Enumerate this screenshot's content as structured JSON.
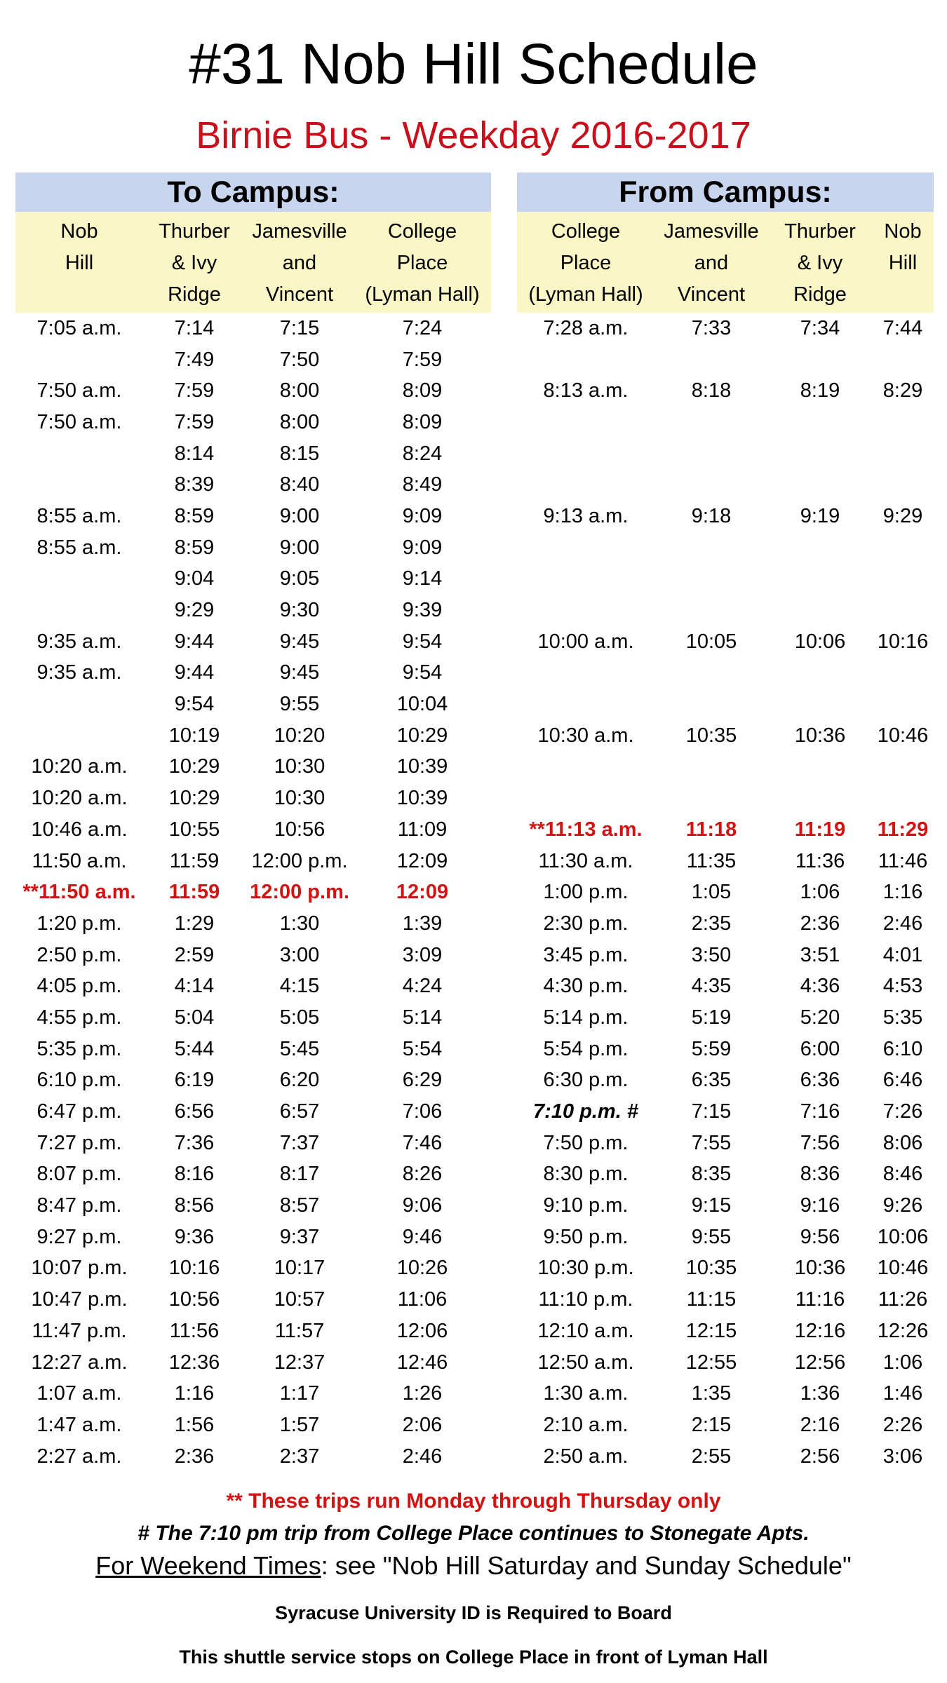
{
  "title": "#31 Nob Hill Schedule",
  "subtitle": "Birnie Bus - Weekday 2016-2017",
  "colors": {
    "subtitle": "#c8101c",
    "highlight_red": "#d41212",
    "header_blue": "#c7d6ee",
    "header_yellow": "#fbf6c6"
  },
  "to_campus": {
    "heading": "To Campus:",
    "columns": [
      [
        "Nob",
        "Hill"
      ],
      [
        "Thurber",
        "& Ivy",
        "Ridge"
      ],
      [
        "Jamesville",
        "and",
        "Vincent"
      ],
      [
        "College",
        "Place",
        "(Lyman Hall)"
      ]
    ],
    "rows": [
      {
        "cells": [
          "7:05 a.m.",
          "7:14",
          "7:15",
          "7:24"
        ]
      },
      {
        "cells": [
          "",
          "7:49",
          "7:50",
          "7:59"
        ]
      },
      {
        "cells": [
          "7:50 a.m.",
          "7:59",
          "8:00",
          "8:09"
        ]
      },
      {
        "cells": [
          "7:50 a.m.",
          "7:59",
          "8:00",
          "8:09"
        ]
      },
      {
        "cells": [
          "",
          "8:14",
          "8:15",
          "8:24"
        ]
      },
      {
        "cells": [
          "",
          "8:39",
          "8:40",
          "8:49"
        ]
      },
      {
        "cells": [
          "8:55 a.m.",
          "8:59",
          "9:00",
          "9:09"
        ]
      },
      {
        "cells": [
          "8:55 a.m.",
          "8:59",
          "9:00",
          "9:09"
        ]
      },
      {
        "cells": [
          "",
          "9:04",
          "9:05",
          "9:14"
        ]
      },
      {
        "cells": [
          "",
          "9:29",
          "9:30",
          "9:39"
        ]
      },
      {
        "cells": [
          "9:35 a.m.",
          "9:44",
          "9:45",
          "9:54"
        ]
      },
      {
        "cells": [
          "9:35 a.m.",
          "9:44",
          "9:45",
          "9:54"
        ]
      },
      {
        "cells": [
          "",
          "9:54",
          "9:55",
          "10:04"
        ]
      },
      {
        "cells": [
          "",
          "10:19",
          "10:20",
          "10:29"
        ]
      },
      {
        "cells": [
          "10:20 a.m.",
          "10:29",
          "10:30",
          "10:39"
        ]
      },
      {
        "cells": [
          "10:20 a.m.",
          "10:29",
          "10:30",
          "10:39"
        ]
      },
      {
        "cells": [
          "10:46 a.m.",
          "10:55",
          "10:56",
          "11:09"
        ]
      },
      {
        "cells": [
          "11:50 a.m.",
          "11:59",
          "12:00 p.m.",
          "12:09"
        ]
      },
      {
        "cells": [
          "**11:50 a.m.",
          "11:59",
          "12:00 p.m.",
          "12:09"
        ],
        "red": true
      },
      {
        "cells": [
          "1:20 p.m.",
          "1:29",
          "1:30",
          "1:39"
        ]
      },
      {
        "cells": [
          "2:50 p.m.",
          "2:59",
          "3:00",
          "3:09"
        ]
      },
      {
        "cells": [
          "4:05 p.m.",
          "4:14",
          "4:15",
          "4:24"
        ]
      },
      {
        "cells": [
          "4:55 p.m.",
          "5:04",
          "5:05",
          "5:14"
        ]
      },
      {
        "cells": [
          "5:35 p.m.",
          "5:44",
          "5:45",
          "5:54"
        ]
      },
      {
        "cells": [
          "6:10 p.m.",
          "6:19",
          "6:20",
          "6:29"
        ]
      },
      {
        "cells": [
          "6:47 p.m.",
          "6:56",
          "6:57",
          "7:06"
        ]
      },
      {
        "cells": [
          "7:27 p.m.",
          "7:36",
          "7:37",
          "7:46"
        ]
      },
      {
        "cells": [
          "8:07 p.m.",
          "8:16",
          "8:17",
          "8:26"
        ]
      },
      {
        "cells": [
          "8:47 p.m.",
          "8:56",
          "8:57",
          "9:06"
        ]
      },
      {
        "cells": [
          "9:27 p.m.",
          "9:36",
          "9:37",
          "9:46"
        ]
      },
      {
        "cells": [
          "10:07 p.m.",
          "10:16",
          "10:17",
          "10:26"
        ]
      },
      {
        "cells": [
          "10:47 p.m.",
          "10:56",
          "10:57",
          "11:06"
        ]
      },
      {
        "cells": [
          "11:47 p.m.",
          "11:56",
          "11:57",
          "12:06"
        ]
      },
      {
        "cells": [
          "12:27 a.m.",
          "12:36",
          "12:37",
          "12:46"
        ]
      },
      {
        "cells": [
          "1:07 a.m.",
          "1:16",
          "1:17",
          "1:26"
        ]
      },
      {
        "cells": [
          "1:47 a.m.",
          "1:56",
          "1:57",
          "2:06"
        ]
      },
      {
        "cells": [
          "2:27 a.m.",
          "2:36",
          "2:37",
          "2:46"
        ]
      }
    ]
  },
  "from_campus": {
    "heading": "From Campus:",
    "columns": [
      [
        "College",
        "Place",
        "(Lyman Hall)"
      ],
      [
        "Jamesville",
        "and",
        "Vincent"
      ],
      [
        "Thurber",
        "& Ivy",
        "Ridge"
      ],
      [
        "Nob",
        "Hill"
      ]
    ],
    "rows": [
      {
        "cells": [
          "7:28 a.m.",
          "7:33",
          "7:34",
          "7:44"
        ]
      },
      {
        "cells": [
          "",
          "",
          "",
          ""
        ]
      },
      {
        "cells": [
          "8:13 a.m.",
          "8:18",
          "8:19",
          "8:29"
        ]
      },
      {
        "cells": [
          "",
          "",
          "",
          ""
        ]
      },
      {
        "cells": [
          "",
          "",
          "",
          ""
        ]
      },
      {
        "cells": [
          "",
          "",
          "",
          ""
        ]
      },
      {
        "cells": [
          "9:13 a.m.",
          "9:18",
          "9:19",
          "9:29"
        ]
      },
      {
        "cells": [
          "",
          "",
          "",
          ""
        ]
      },
      {
        "cells": [
          "",
          "",
          "",
          ""
        ]
      },
      {
        "cells": [
          "",
          "",
          "",
          ""
        ]
      },
      {
        "cells": [
          "10:00 a.m.",
          "10:05",
          "10:06",
          "10:16"
        ]
      },
      {
        "cells": [
          "",
          "",
          "",
          ""
        ]
      },
      {
        "cells": [
          "",
          "",
          "",
          ""
        ]
      },
      {
        "cells": [
          "10:30 a.m.",
          "10:35",
          "10:36",
          "10:46"
        ]
      },
      {
        "cells": [
          "",
          "",
          "",
          ""
        ]
      },
      {
        "cells": [
          "",
          "",
          "",
          ""
        ]
      },
      {
        "cells": [
          "**11:13 a.m.",
          "11:18",
          "11:19",
          "11:29"
        ],
        "red": true
      },
      {
        "cells": [
          "11:30 a.m.",
          "11:35",
          "11:36",
          "11:46"
        ]
      },
      {
        "cells": [
          "1:00 p.m.",
          "1:05",
          "1:06",
          "1:16"
        ]
      },
      {
        "cells": [
          "2:30 p.m.",
          "2:35",
          "2:36",
          "2:46"
        ]
      },
      {
        "cells": [
          "3:45 p.m.",
          "3:50",
          "3:51",
          "4:01"
        ]
      },
      {
        "cells": [
          "4:30 p.m.",
          "4:35",
          "4:36",
          "4:53"
        ]
      },
      {
        "cells": [
          "5:14 p.m.",
          "5:19",
          "5:20",
          "5:35"
        ]
      },
      {
        "cells": [
          "5:54 p.m.",
          "5:59",
          "6:00",
          "6:10"
        ]
      },
      {
        "cells": [
          "6:30 p.m.",
          "6:35",
          "6:36",
          "6:46"
        ]
      },
      {
        "cells": [
          "7:10 p.m. #",
          "7:15",
          "7:16",
          "7:26"
        ],
        "italic": true
      },
      {
        "cells": [
          "7:50 p.m.",
          "7:55",
          "7:56",
          "8:06"
        ]
      },
      {
        "cells": [
          "8:30 p.m.",
          "8:35",
          "8:36",
          "8:46"
        ]
      },
      {
        "cells": [
          "9:10 p.m.",
          "9:15",
          "9:16",
          "9:26"
        ]
      },
      {
        "cells": [
          "9:50 p.m.",
          "9:55",
          "9:56",
          "10:06"
        ]
      },
      {
        "cells": [
          "10:30 p.m.",
          "10:35",
          "10:36",
          "10:46"
        ]
      },
      {
        "cells": [
          "11:10 p.m.",
          "11:15",
          "11:16",
          "11:26"
        ]
      },
      {
        "cells": [
          "12:10 a.m.",
          "12:15",
          "12:16",
          "12:26"
        ]
      },
      {
        "cells": [
          "12:50 a.m.",
          "12:55",
          "12:56",
          "1:06"
        ]
      },
      {
        "cells": [
          "1:30 a.m.",
          "1:35",
          "1:36",
          "1:46"
        ]
      },
      {
        "cells": [
          "2:10 a.m.",
          "2:15",
          "2:16",
          "2:26"
        ]
      },
      {
        "cells": [
          "2:50 a.m.",
          "2:55",
          "2:56",
          "3:06"
        ]
      }
    ]
  },
  "notes": {
    "mon_thu": "** These trips run Monday through Thursday only",
    "stonegate": "# The 7:10 pm  trip from College Place continues to Stonegate Apts.",
    "weekend_link": "For Weekend Times",
    "weekend_rest": ":  see \"Nob Hill Saturday and Sunday Schedule\"",
    "id_required": "Syracuse University ID is Required to Board",
    "stop_location": "This shuttle service stops on College Place in front of Lyman Hall"
  }
}
